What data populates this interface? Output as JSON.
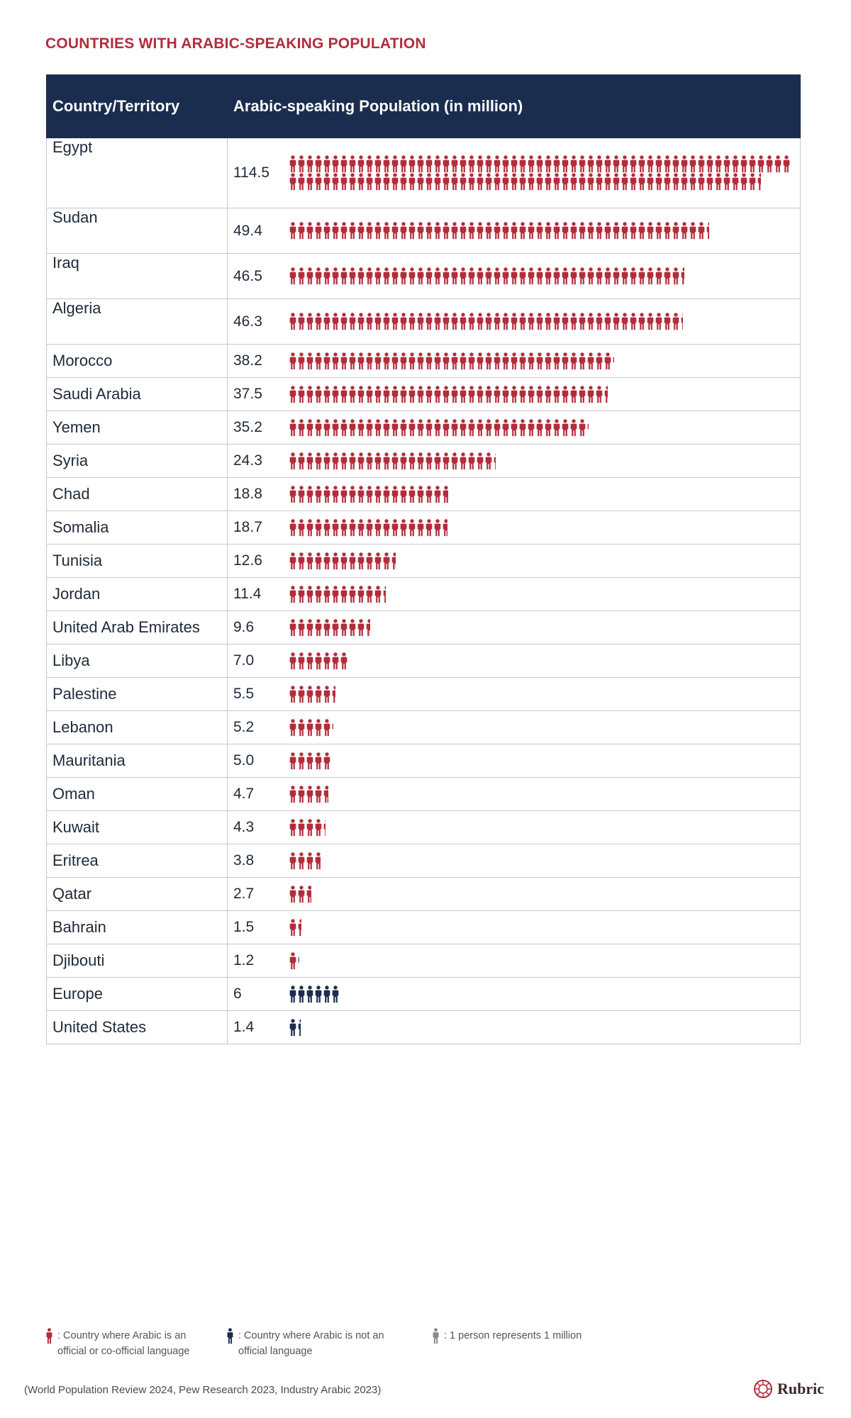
{
  "title": "COUNTRIES WITH ARABIC-SPEAKING POPULATION",
  "columns": [
    "Country/Territory",
    "Arabic-speaking Population (in million)"
  ],
  "colors": {
    "official": "#b22d3b",
    "not_official": "#1b2d4f",
    "unit": "#8a8a8a",
    "header_bg": "#1b2d4f"
  },
  "chart_data": {
    "type": "table",
    "unit": "million",
    "rows": [
      {
        "country": "Egypt",
        "label": "114.5",
        "value": 114.5,
        "official": true
      },
      {
        "country": "Sudan",
        "label": "49.4",
        "value": 49.4,
        "official": true
      },
      {
        "country": "Iraq",
        "label": "46.5",
        "value": 46.5,
        "official": true
      },
      {
        "country": "Algeria",
        "label": "46.3",
        "value": 46.3,
        "official": true
      },
      {
        "country": "Morocco",
        "label": "38.2",
        "value": 38.2,
        "official": true
      },
      {
        "country": "Saudi Arabia",
        "label": "37.5",
        "value": 37.5,
        "official": true
      },
      {
        "country": "Yemen",
        "label": "35.2",
        "value": 35.2,
        "official": true
      },
      {
        "country": "Syria",
        "label": "24.3",
        "value": 24.3,
        "official": true
      },
      {
        "country": "Chad",
        "label": "18.8",
        "value": 18.8,
        "official": true
      },
      {
        "country": "Somalia",
        "label": "18.7",
        "value": 18.7,
        "official": true
      },
      {
        "country": "Tunisia",
        "label": "12.6",
        "value": 12.6,
        "official": true
      },
      {
        "country": "Jordan",
        "label": "11.4",
        "value": 11.4,
        "official": true
      },
      {
        "country": "United Arab Emirates",
        "label": "9.6",
        "value": 9.6,
        "official": true
      },
      {
        "country": "Libya",
        "label": "7.0",
        "value": 7.0,
        "official": true
      },
      {
        "country": "Palestine",
        "label": "5.5",
        "value": 5.5,
        "official": true
      },
      {
        "country": "Lebanon",
        "label": "5.2",
        "value": 5.2,
        "official": true
      },
      {
        "country": "Mauritania",
        "label": "5.0",
        "value": 5.0,
        "official": true
      },
      {
        "country": "Oman",
        "label": "4.7",
        "value": 4.7,
        "official": true
      },
      {
        "country": "Kuwait",
        "label": "4.3",
        "value": 4.3,
        "official": true
      },
      {
        "country": "Eritrea",
        "label": "3.8",
        "value": 3.8,
        "official": true
      },
      {
        "country": "Qatar",
        "label": "2.7",
        "value": 2.7,
        "official": true
      },
      {
        "country": "Bahrain",
        "label": "1.5",
        "value": 1.5,
        "official": true
      },
      {
        "country": "Djibouti",
        "label": "1.2",
        "value": 1.2,
        "official": true
      },
      {
        "country": "Europe",
        "label": "6",
        "value": 6,
        "official": false
      },
      {
        "country": "United States",
        "label": "1.4",
        "value": 1.4,
        "official": false
      }
    ]
  },
  "legend": {
    "official": ": Country where Arabic is an official or co-official language",
    "not_official": ": Country where Arabic is not an official language",
    "unit": ": 1 person represents 1 million"
  },
  "source": "(World Population Review 2024, Pew Research 2023, Industry Arabic 2023)",
  "brand": {
    "name": "Rubric",
    "icon": "rubric-logo-icon"
  }
}
